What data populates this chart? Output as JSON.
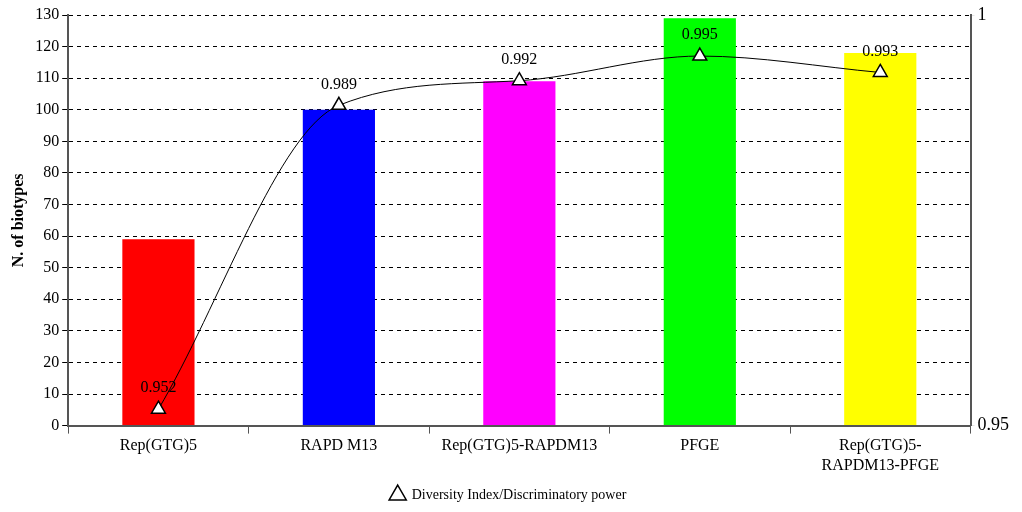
{
  "chart_data": {
    "type": "bar",
    "ylabel": "N. of biotypes",
    "categories": [
      "Rep(GTG)5",
      "RAPD M13",
      "Rep(GTG)5-RAPDM13",
      "PFGE",
      "Rep(GTG)5-RAPDM13-PFGE"
    ],
    "colors": [
      "#ff0000",
      "#0000ff",
      "#ff00ff",
      "#00ff00",
      "#ffff00"
    ],
    "values": [
      59,
      100,
      109,
      129,
      118
    ],
    "series": [
      {
        "type": "line",
        "name": "Diversity Index/Discriminatory power",
        "color": "#000000",
        "axis": "y2",
        "marker": "triangle",
        "values": [
          0.952,
          0.989,
          0.992,
          0.995,
          0.993
        ],
        "value_labels": [
          "0.952",
          "0.989",
          "0.992",
          "0.995",
          "0.993"
        ]
      }
    ],
    "ylim": [
      0,
      130
    ],
    "yticks": [
      0,
      10,
      20,
      30,
      40,
      50,
      60,
      70,
      80,
      90,
      100,
      110,
      120,
      130
    ],
    "y2lim": [
      0.95,
      1
    ],
    "y2ticks": [
      0.95,
      1
    ],
    "grid": "y",
    "legend": "bottom"
  }
}
